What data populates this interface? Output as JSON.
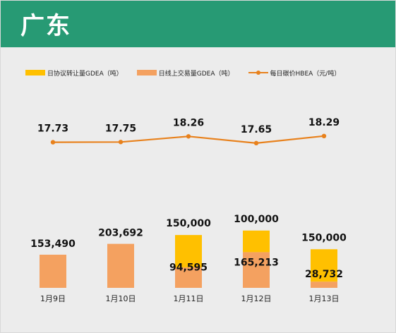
{
  "header": {
    "title": "广东"
  },
  "legend": {
    "items": [
      {
        "label": "日协议转让量GDEA（吨）",
        "color": "#ffc000",
        "kind": "bar"
      },
      {
        "label": "日线上交易量GDEA（吨）",
        "color": "#f4a160",
        "kind": "bar"
      },
      {
        "label": "每日碳价HBEA（元/吨）",
        "color": "#e8811c",
        "kind": "line"
      }
    ]
  },
  "chart_data": {
    "type": "bar",
    "categories": [
      "1月9日",
      "1月10日",
      "1月11日",
      "1月12日",
      "1月13日"
    ],
    "series": [
      {
        "name": "日协议转让量GDEA（吨）",
        "type": "bar",
        "color": "#ffc000",
        "values": [
          0,
          0,
          150000,
          100000,
          150000
        ],
        "labels": [
          "",
          "",
          "150,000",
          "100,000",
          "150,000"
        ]
      },
      {
        "name": "日线上交易量GDEA（吨）",
        "type": "bar",
        "color": "#f4a160",
        "values": [
          153490,
          203692,
          94595,
          165213,
          28732
        ],
        "labels": [
          "153,490",
          "203,692",
          "94,595",
          "165,213",
          "28,732"
        ]
      },
      {
        "name": "每日碳价HBEA（元/吨）",
        "type": "line",
        "color": "#e8811c",
        "values": [
          17.73,
          17.75,
          18.26,
          17.65,
          18.29
        ],
        "labels": [
          "17.73",
          "17.75",
          "18.26",
          "17.65",
          "18.29"
        ]
      }
    ],
    "legend_position": "top-left",
    "grid": false
  }
}
